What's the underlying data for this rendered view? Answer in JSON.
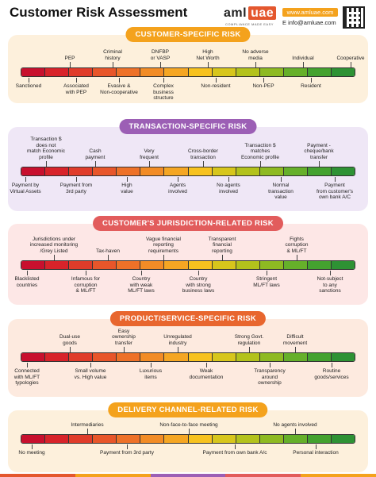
{
  "header": {
    "title": "Customer Risk Assessment",
    "logo_a": "aml",
    "logo_b": "uae",
    "logo_sub": "COMPLIANCE MADE EASY",
    "web": "www.amluae.com",
    "email": "E info@amluae.com"
  },
  "sections": [
    {
      "title": "CUSTOMER-SPECIFIC RISK",
      "top_labels": [
        "PEP",
        "Criminal\nhistory",
        "DNFBP\nor VASP",
        "High\nNet Worth",
        "No adverse\nmedia",
        "Individual",
        "Cooperative"
      ],
      "bottom_labels": [
        "Sanctioned",
        "Associated\nwith PEP",
        "Evasive &\nNon-cooperative",
        "Complex\nbusiness\nstructure",
        "Non-resident",
        "Non-PEP",
        "Resident"
      ]
    },
    {
      "title": "TRANSACTION-SPECIFIC RISK",
      "top_labels": [
        "Transaction $\ndoes not\nmatch Economic\nprofile",
        "Cash\npayment",
        "Very\nfrequent",
        "Cross-border\ntransaction",
        "Transaction $\nmatches\nEconomic profile",
        "Payment -\ncheque/bank\ntransfer"
      ],
      "bottom_labels": [
        "Payment by\nVirtual Assets",
        "Payment from\n3rd party",
        "High\nvalue",
        "Agents\ninvolved",
        "No agents\ninvolved",
        "Normal\ntransaction\nvalue",
        "Payment\nfrom customer's\nown bank A/C"
      ]
    },
    {
      "title": "CUSTOMER'S JURISDICTION-RELATED RISK",
      "top_labels": [
        "Jurisdictions under\nincreased monitoring\n/Grey Listed",
        "Tax-haven",
        "Vague financial\nreporting\nrequirements",
        "Transparent\nfinancial\nreporting",
        "Fights\ncorruption\n& ML/FT"
      ],
      "bottom_labels": [
        "Blacklisted\ncountries",
        "Infamous for\ncorruption\n& ML/FT",
        "Country\nwith weak\nML/FT laws",
        "Country\nwith strong\nbusiness laws",
        "Stringent\nML/FT laws",
        "Not-subject\nto any\nsanctions"
      ]
    },
    {
      "title": "PRODUCT/SERVICE-SPECIFIC RISK",
      "top_labels": [
        "Dual-use\ngoods",
        "Easy\nownership\ntransfer",
        "Unregulated\nindustry",
        "Strong Govt.\nregulation",
        "Difficult\nmovement"
      ],
      "bottom_labels": [
        "Connected\nwith ML/FT\ntypologies",
        "Small volume\nvs. High value",
        "Luxurious\nitems",
        "Weak\ndocumentation",
        "Transparency\naround\nownership",
        "Routine\ngoods/services"
      ]
    },
    {
      "title": "DELIVERY CHANNEL-RELATED RISK",
      "top_labels": [
        "Intermediaries",
        "Non-face-to-face meeting",
        "No agents involved"
      ],
      "bottom_labels": [
        "No meeting",
        "Payment from 3rd party",
        "Payment from own bank A/c",
        "Personal interaction"
      ]
    }
  ],
  "colors": {
    "gradient": [
      "#c8102e",
      "#d8232a",
      "#e03c2a",
      "#e8562a",
      "#ee7128",
      "#f28c26",
      "#f5a623",
      "#f7c21f",
      "#d7c61c",
      "#b3c21c",
      "#8eba22",
      "#66b02a",
      "#44a22f",
      "#2e9234"
    ],
    "sec_bg": [
      "#fdf0dc",
      "#efe7f6",
      "#fde7e6",
      "#fdeadf",
      "#fdf0dc"
    ],
    "title_bg": [
      "#f4a21d",
      "#9c5fb5",
      "#e25c5c",
      "#e8662e",
      "#f4a21d"
    ]
  }
}
